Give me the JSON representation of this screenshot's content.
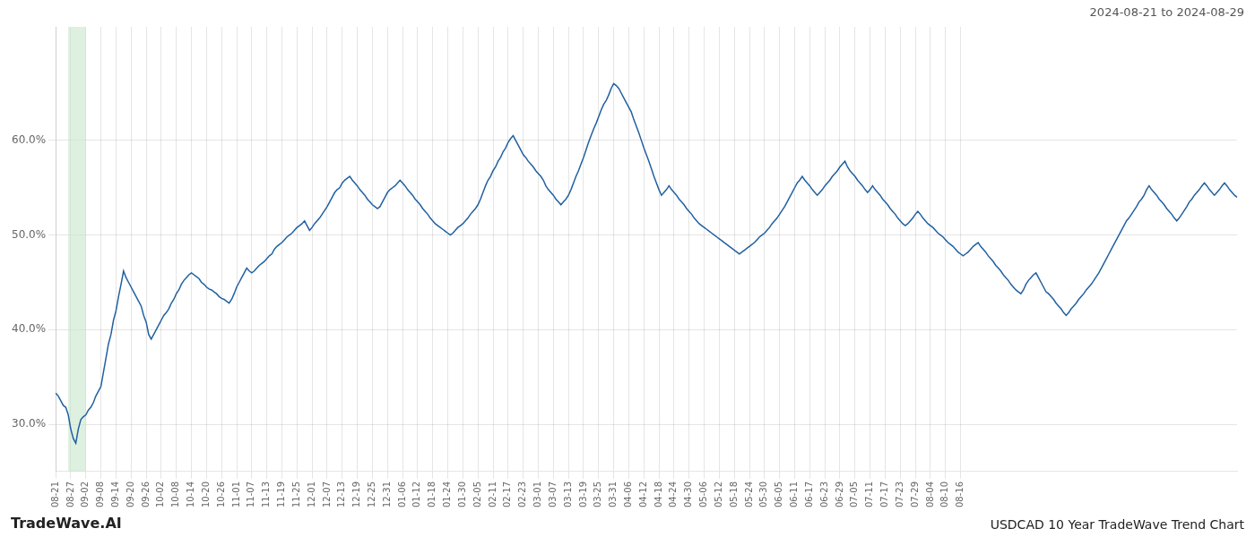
{
  "chart_data": {
    "type": "line",
    "title": "USDCAD 10 Year TradeWave Trend Chart",
    "subtitle": "2024-08-21 to 2024-08-29",
    "annotations": [
      "TradeWave.AI"
    ],
    "color": "#2060a0",
    "grid": true,
    "highlight": {
      "start": 5,
      "end": 12,
      "color": "#c8e6c9"
    },
    "ylim": [
      0.25,
      0.72
    ],
    "yticks": [
      {
        "value": 0.3,
        "label": "30.0%"
      },
      {
        "value": 0.4,
        "label": "40.0%"
      },
      {
        "value": 0.5,
        "label": "50.0%"
      },
      {
        "value": 0.6,
        "label": "60.0%"
      }
    ],
    "categories": [
      "08-21",
      null,
      null,
      null,
      null,
      null,
      "08-27",
      null,
      null,
      null,
      null,
      null,
      "09-02",
      null,
      null,
      null,
      null,
      null,
      "09-08",
      null,
      null,
      null,
      null,
      null,
      "09-14",
      null,
      null,
      null,
      null,
      null,
      "09-20",
      null,
      null,
      null,
      null,
      null,
      "09-26",
      null,
      null,
      null,
      null,
      null,
      "10-02",
      null,
      null,
      null,
      null,
      null,
      "10-08",
      null,
      null,
      null,
      null,
      null,
      "10-14",
      null,
      null,
      null,
      null,
      null,
      "10-20",
      null,
      null,
      null,
      null,
      null,
      "10-26",
      null,
      null,
      null,
      null,
      null,
      "11-01",
      null,
      null,
      null,
      null,
      null,
      "11-07",
      null,
      null,
      null,
      null,
      null,
      "11-13",
      null,
      null,
      null,
      null,
      null,
      "11-19",
      null,
      null,
      null,
      null,
      null,
      "11-25",
      null,
      null,
      null,
      null,
      null,
      "12-01",
      null,
      null,
      null,
      null,
      null,
      "12-07",
      null,
      null,
      null,
      null,
      null,
      "12-13",
      null,
      null,
      null,
      null,
      null,
      "12-19",
      null,
      null,
      null,
      null,
      null,
      "12-25",
      null,
      null,
      null,
      null,
      null,
      "12-31",
      null,
      null,
      null,
      null,
      null,
      "01-06",
      null,
      null,
      null,
      null,
      null,
      "01-12",
      null,
      null,
      null,
      null,
      null,
      "01-18",
      null,
      null,
      null,
      null,
      null,
      "01-24",
      null,
      null,
      null,
      null,
      null,
      "01-30",
      null,
      null,
      null,
      null,
      null,
      "02-05",
      null,
      null,
      null,
      null,
      null,
      "02-11",
      null,
      null,
      null,
      null,
      null,
      "02-17",
      null,
      null,
      null,
      null,
      null,
      "02-23",
      null,
      null,
      null,
      null,
      null,
      "03-01",
      null,
      null,
      null,
      null,
      null,
      "03-07",
      null,
      null,
      null,
      null,
      null,
      "03-13",
      null,
      null,
      null,
      null,
      null,
      "03-19",
      null,
      null,
      null,
      null,
      null,
      "03-25",
      null,
      null,
      null,
      null,
      null,
      "03-31",
      null,
      null,
      null,
      null,
      null,
      "04-06",
      null,
      null,
      null,
      null,
      null,
      "04-12",
      null,
      null,
      null,
      null,
      null,
      "04-18",
      null,
      null,
      null,
      null,
      null,
      "04-24",
      null,
      null,
      null,
      null,
      null,
      "04-30",
      null,
      null,
      null,
      null,
      null,
      "05-06",
      null,
      null,
      null,
      null,
      null,
      "05-12",
      null,
      null,
      null,
      null,
      null,
      "05-18",
      null,
      null,
      null,
      null,
      null,
      "05-24",
      null,
      null,
      null,
      null,
      null,
      "05-30",
      null,
      null,
      null,
      null,
      null,
      "06-05",
      null,
      null,
      null,
      null,
      null,
      "06-11",
      null,
      null,
      null,
      null,
      null,
      "06-17",
      null,
      null,
      null,
      null,
      null,
      "06-23",
      null,
      null,
      null,
      null,
      null,
      "06-29",
      null,
      null,
      null,
      null,
      null,
      "07-05",
      null,
      null,
      null,
      null,
      null,
      "07-11",
      null,
      null,
      null,
      null,
      null,
      "07-17",
      null,
      null,
      null,
      null,
      null,
      "07-23",
      null,
      null,
      null,
      null,
      null,
      "07-29",
      null,
      null,
      null,
      null,
      null,
      "08-04",
      null,
      null,
      null,
      null,
      null,
      "08-10",
      null,
      null,
      null,
      null,
      null,
      "08-16",
      null,
      null,
      null,
      null,
      null,
      null,
      null,
      null,
      null,
      null,
      null,
      null,
      null,
      null,
      null,
      null,
      null,
      null,
      null,
      null,
      null,
      null,
      null,
      null,
      null,
      null,
      null,
      null,
      null,
      null,
      null,
      null,
      null,
      null,
      null,
      null,
      null,
      null,
      null,
      null,
      null,
      null,
      null,
      null,
      null,
      null,
      null,
      null,
      null,
      null,
      null,
      null,
      null,
      null,
      null,
      null,
      null,
      null,
      null,
      null,
      null,
      null,
      null,
      null,
      null,
      null,
      null,
      null,
      null,
      null,
      null,
      null,
      null,
      null,
      null,
      null,
      null,
      null,
      null,
      null,
      null,
      null,
      null,
      null,
      null,
      null,
      null,
      null,
      null,
      null,
      null,
      null,
      null,
      null,
      null,
      null,
      null,
      null,
      null,
      null,
      null,
      null,
      null,
      null,
      null,
      null,
      null,
      null,
      null,
      null
    ],
    "values": [
      0.333,
      0.33,
      0.325,
      0.32,
      0.318,
      0.31,
      0.295,
      0.285,
      0.28,
      0.295,
      0.305,
      0.308,
      0.31,
      0.315,
      0.318,
      0.323,
      0.33,
      0.335,
      0.34,
      0.355,
      0.37,
      0.385,
      0.395,
      0.41,
      0.42,
      0.435,
      0.448,
      0.462,
      0.455,
      0.45,
      0.445,
      0.44,
      0.435,
      0.43,
      0.425,
      0.415,
      0.408,
      0.395,
      0.39,
      0.395,
      0.4,
      0.405,
      0.41,
      0.415,
      0.418,
      0.422,
      0.428,
      0.432,
      0.438,
      0.442,
      0.448,
      0.452,
      0.455,
      0.458,
      0.46,
      0.458,
      0.456,
      0.454,
      0.45,
      0.448,
      0.445,
      0.443,
      0.442,
      0.44,
      0.438,
      0.435,
      0.433,
      0.432,
      0.43,
      0.428,
      0.432,
      0.438,
      0.445,
      0.45,
      0.455,
      0.46,
      0.465,
      0.462,
      0.46,
      0.462,
      0.465,
      0.468,
      0.47,
      0.472,
      0.475,
      0.478,
      0.48,
      0.485,
      0.488,
      0.49,
      0.492,
      0.495,
      0.498,
      0.5,
      0.502,
      0.505,
      0.508,
      0.51,
      0.512,
      0.515,
      0.51,
      0.505,
      0.508,
      0.512,
      0.515,
      0.518,
      0.522,
      0.526,
      0.53,
      0.535,
      0.54,
      0.545,
      0.548,
      0.55,
      0.555,
      0.558,
      0.56,
      0.562,
      0.558,
      0.555,
      0.552,
      0.548,
      0.545,
      0.542,
      0.538,
      0.535,
      0.532,
      0.53,
      0.528,
      0.53,
      0.535,
      0.54,
      0.545,
      0.548,
      0.55,
      0.552,
      0.555,
      0.558,
      0.555,
      0.552,
      0.548,
      0.545,
      0.542,
      0.538,
      0.535,
      0.532,
      0.528,
      0.525,
      0.522,
      0.518,
      0.515,
      0.512,
      0.51,
      0.508,
      0.506,
      0.504,
      0.502,
      0.5,
      0.502,
      0.505,
      0.508,
      0.51,
      0.512,
      0.515,
      0.518,
      0.522,
      0.525,
      0.528,
      0.532,
      0.538,
      0.545,
      0.552,
      0.558,
      0.562,
      0.568,
      0.572,
      0.578,
      0.582,
      0.588,
      0.592,
      0.598,
      0.602,
      0.605,
      0.6,
      0.595,
      0.59,
      0.585,
      0.582,
      0.578,
      0.575,
      0.572,
      0.568,
      0.565,
      0.562,
      0.558,
      0.552,
      0.548,
      0.545,
      0.542,
      0.538,
      0.535,
      0.532,
      0.535,
      0.538,
      0.542,
      0.548,
      0.555,
      0.562,
      0.568,
      0.575,
      0.582,
      0.59,
      0.598,
      0.605,
      0.612,
      0.618,
      0.625,
      0.632,
      0.638,
      0.642,
      0.648,
      0.655,
      0.66,
      0.658,
      0.655,
      0.65,
      0.645,
      0.64,
      0.635,
      0.63,
      0.622,
      0.615,
      0.608,
      0.6,
      0.592,
      0.585,
      0.578,
      0.57,
      0.562,
      0.555,
      0.548,
      0.542,
      0.545,
      0.548,
      0.552,
      0.548,
      0.545,
      0.542,
      0.538,
      0.535,
      0.532,
      0.528,
      0.525,
      0.522,
      0.518,
      0.515,
      0.512,
      0.51,
      0.508,
      0.506,
      0.504,
      0.502,
      0.5,
      0.498,
      0.496,
      0.494,
      0.492,
      0.49,
      0.488,
      0.486,
      0.484,
      0.482,
      0.48,
      0.482,
      0.484,
      0.486,
      0.488,
      0.49,
      0.492,
      0.495,
      0.498,
      0.5,
      0.502,
      0.505,
      0.508,
      0.512,
      0.515,
      0.518,
      0.522,
      0.526,
      0.53,
      0.535,
      0.54,
      0.545,
      0.55,
      0.555,
      0.558,
      0.562,
      0.558,
      0.555,
      0.552,
      0.548,
      0.545,
      0.542,
      0.545,
      0.548,
      0.552,
      0.555,
      0.558,
      0.562,
      0.565,
      0.568,
      0.572,
      0.575,
      0.578,
      0.572,
      0.568,
      0.565,
      0.562,
      0.558,
      0.555,
      0.552,
      0.548,
      0.545,
      0.548,
      0.552,
      0.548,
      0.545,
      0.542,
      0.538,
      0.535,
      0.532,
      0.528,
      0.525,
      0.522,
      0.518,
      0.515,
      0.512,
      0.51,
      0.512,
      0.515,
      0.518,
      0.522,
      0.525,
      0.522,
      0.518,
      0.515,
      0.512,
      0.51,
      0.508,
      0.505,
      0.502,
      0.5,
      0.498,
      0.495,
      0.492,
      0.49,
      0.488,
      0.485,
      0.482,
      0.48,
      0.478,
      0.48,
      0.482,
      0.485,
      0.488,
      0.49,
      0.492,
      0.488,
      0.485,
      0.482,
      0.478,
      0.475,
      0.472,
      0.468,
      0.465,
      0.462,
      0.458,
      0.455,
      0.452,
      0.448,
      0.445,
      0.442,
      0.44,
      0.438,
      0.442,
      0.448,
      0.452,
      0.455,
      0.458,
      0.46,
      0.455,
      0.45,
      0.445,
      0.44,
      0.438,
      0.435,
      0.432,
      0.428,
      0.425,
      0.422,
      0.418,
      0.415,
      0.418,
      0.422,
      0.425,
      0.428,
      0.432,
      0.435,
      0.438,
      0.442,
      0.445,
      0.448,
      0.452,
      0.456,
      0.46,
      0.465,
      0.47,
      0.475,
      0.48,
      0.485,
      0.49,
      0.495,
      0.5,
      0.505,
      0.51,
      0.515,
      0.518,
      0.522,
      0.526,
      0.53,
      0.535,
      0.538,
      0.542,
      0.548,
      0.552,
      0.548,
      0.545,
      0.542,
      0.538,
      0.535,
      0.532,
      0.528,
      0.525,
      0.522,
      0.518,
      0.515,
      0.518,
      0.522,
      0.526,
      0.53,
      0.535,
      0.538,
      0.542,
      0.545,
      0.548,
      0.552,
      0.555,
      0.552,
      0.548,
      0.545,
      0.542,
      0.545,
      0.548,
      0.552,
      0.555,
      0.552,
      0.548,
      0.545,
      0.542,
      0.54
    ]
  }
}
